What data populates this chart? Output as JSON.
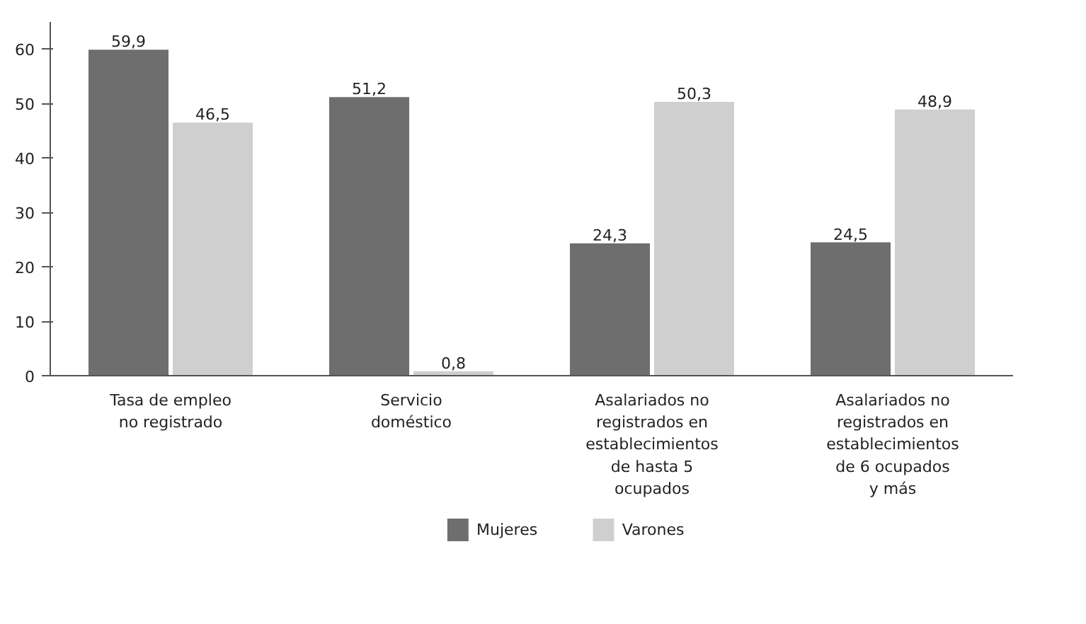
{
  "chart_data": {
    "type": "bar",
    "categories": [
      "Tasa de empleo\nno registrado",
      "Servicio\ndoméstico",
      "Asalariados no\nregistrados en\nestablecimientos\nde hasta 5\nocupados",
      "Asalariados no\nregistrados en\nestablecimientos\nde 6 ocupados\ny más"
    ],
    "series": [
      {
        "name": "Mujeres",
        "color": "#6e6e6e",
        "values": [
          59.9,
          51.2,
          24.3,
          24.5
        ],
        "value_labels": [
          "59,9",
          "51,2",
          "24,3",
          "24,5"
        ]
      },
      {
        "name": "Varones",
        "color": "#cfcfcf",
        "values": [
          46.5,
          0.8,
          50.3,
          48.9
        ],
        "value_labels": [
          "46,5",
          "0,8",
          "50,3",
          "48,9"
        ]
      }
    ],
    "ylim": [
      0,
      65
    ],
    "yticks": [
      0,
      10,
      20,
      30,
      40,
      50,
      60
    ],
    "grid": false,
    "legend": "bottom"
  }
}
